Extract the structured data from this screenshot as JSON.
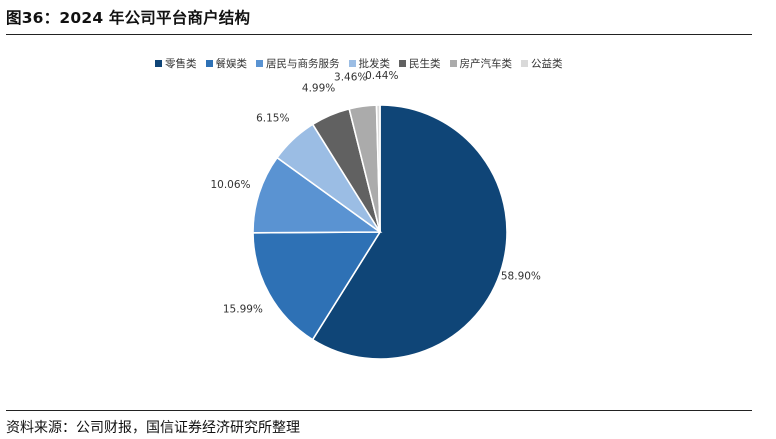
{
  "figure": {
    "title": "图36：2024 年公司平台商户结构",
    "source": "资料来源：公司财报，国信证券经济研究所整理"
  },
  "chart_data": {
    "type": "pie",
    "categories": [
      "零售类",
      "餐娱类",
      "居民与商务服务",
      "批发类",
      "民生类",
      "房产汽车类",
      "公益类"
    ],
    "values": [
      58.9,
      15.99,
      10.06,
      6.15,
      4.99,
      3.46,
      0.44
    ],
    "data_labels": [
      "58.90%",
      "15.99%",
      "10.06%",
      "6.15%",
      "4.99%",
      "3.46%",
      "0.44%"
    ],
    "colors": [
      "#0f4577",
      "#2e71b5",
      "#5a93d2",
      "#9bbde4",
      "#616161",
      "#ababab",
      "#d9d9d9"
    ],
    "legend_position": "top",
    "start_angle": "12 o'clock",
    "direction": "clockwise"
  }
}
